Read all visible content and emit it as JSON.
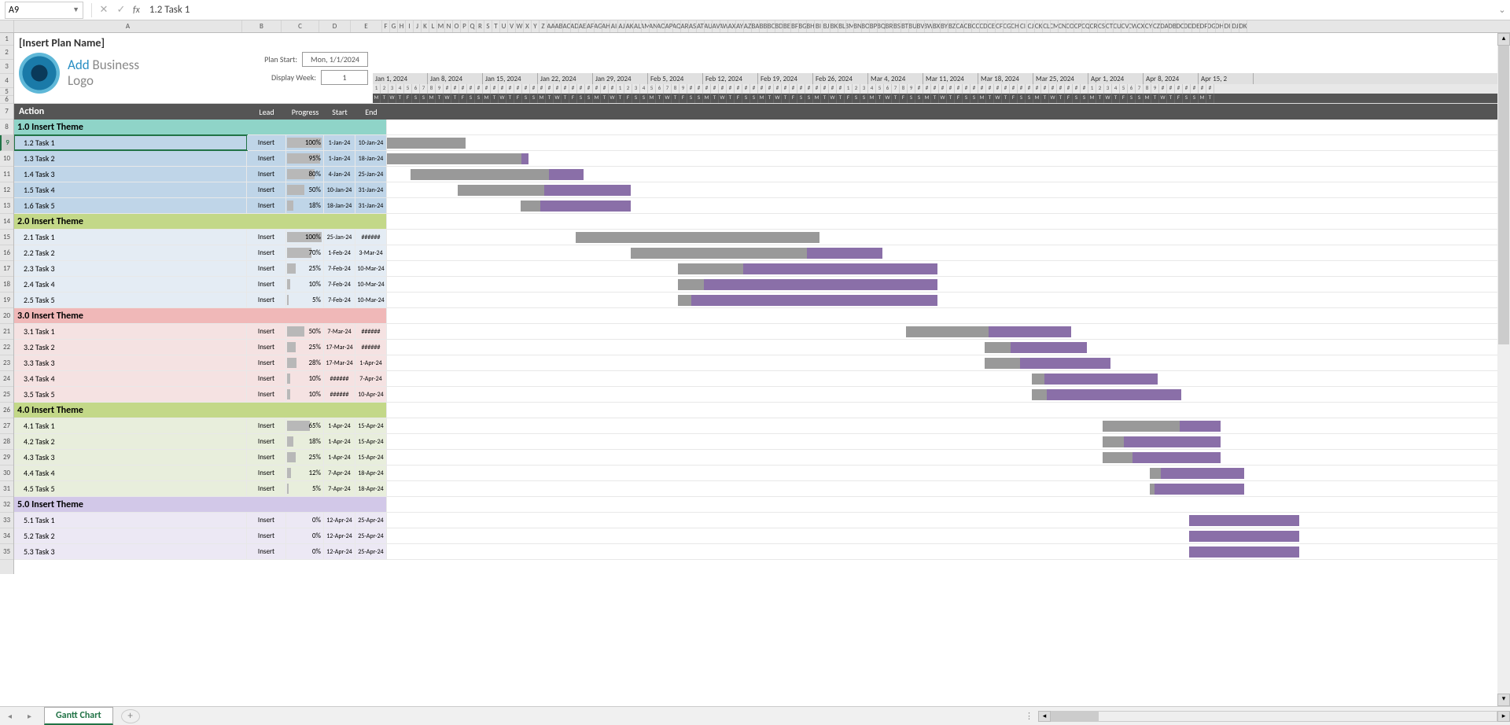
{
  "formula_bar": {
    "cell_ref": "A9",
    "formula": "1.2 Task 1"
  },
  "title": {
    "plan_name": "[Insert Plan Name]",
    "logo_line1_add": "Add",
    "logo_line1_rest": " Business",
    "logo_line2": "Logo",
    "plan_start_label": "Plan Start:",
    "plan_start_value": "Mon, 1/1/2024",
    "display_week_label": "Display Week:",
    "display_week_value": "1"
  },
  "headers": {
    "action": "Action",
    "lead": "Lead",
    "progress": "Progress",
    "start": "Start",
    "end": "End"
  },
  "col_letters": [
    "A",
    "B",
    "C",
    "D",
    "E",
    "F",
    "G",
    "H",
    "I",
    "J",
    "K",
    "L",
    "M",
    "N",
    "O",
    "P",
    "Q",
    "R",
    "S",
    "T",
    "U",
    "V",
    "W",
    "X",
    "Y",
    "Z",
    "AA",
    "AB",
    "AC",
    "AD",
    "AE",
    "AF",
    "AG",
    "AH",
    "AI",
    "AJ",
    "AK",
    "AL",
    "AM",
    "AN",
    "AO",
    "AP",
    "AQ",
    "AR",
    "AS",
    "AT",
    "AU",
    "AV",
    "AW",
    "AX",
    "AY",
    "AZ",
    "BA",
    "BB",
    "BC",
    "BD",
    "BE",
    "BF",
    "BG",
    "BH",
    "BI",
    "BJ",
    "BK",
    "BL",
    "BM",
    "BN",
    "BO",
    "BP",
    "BQ",
    "BR",
    "BS",
    "BT",
    "BU",
    "BV",
    "BW",
    "BX",
    "BY",
    "BZ",
    "CA",
    "CB",
    "CC",
    "CD",
    "CE",
    "CF",
    "CG",
    "CH",
    "CI",
    "CJ",
    "CK",
    "CL",
    "CM",
    "CN",
    "CO",
    "CP",
    "CQ",
    "CR",
    "CS",
    "CT",
    "CU",
    "CV",
    "CW",
    "CX",
    "CY",
    "CZ",
    "DA",
    "DB",
    "DC",
    "DD",
    "DE",
    "DF",
    "DG",
    "DH",
    "DI",
    "DJ",
    "DK"
  ],
  "col_widths": {
    "A": 290,
    "B": 50,
    "C": 48,
    "D": 40,
    "E": 40,
    "rest": 10
  },
  "row_numbers": [
    "1",
    "2",
    "3",
    "4",
    "5",
    "6",
    "7",
    "8",
    "9",
    "10",
    "11",
    "12",
    "13",
    "14",
    "15",
    "16",
    "17",
    "18",
    "19",
    "20",
    "21",
    "22",
    "23",
    "24",
    "25",
    "26",
    "27",
    "28",
    "29",
    "30",
    "31",
    "32",
    "33",
    "34",
    "35"
  ],
  "selected_row": "9",
  "weeks": [
    "Jan 1, 2024",
    "Jan 8, 2024",
    "Jan 15, 2024",
    "Jan 22, 2024",
    "Jan 29, 2024",
    "Feb 5, 2024",
    "Feb 12, 2024",
    "Feb 19, 2024",
    "Feb 26, 2024",
    "Mar 4, 2024",
    "Mar 11, 2024",
    "Mar 18, 2024",
    "Mar 25, 2024",
    "Apr 1, 2024",
    "Apr 8, 2024",
    "Apr 15, 2"
  ],
  "day_nums": [
    "1",
    "2",
    "3",
    "4",
    "5",
    "6",
    "7",
    "8",
    "9",
    "#",
    "#",
    "#",
    "#",
    "#",
    "#",
    "#",
    "#",
    "#",
    "#",
    "#",
    "#",
    "#",
    "#",
    "#",
    "#",
    "#",
    "#",
    "#",
    "#",
    "#",
    "#",
    "1",
    "2",
    "3",
    "4",
    "5",
    "6",
    "7",
    "8",
    "9",
    "#",
    "#",
    "#",
    "#",
    "#",
    "#",
    "#",
    "#",
    "#",
    "#",
    "#",
    "#",
    "#",
    "#",
    "#",
    "#",
    "#",
    "#",
    "#",
    "#",
    "1",
    "2",
    "3",
    "4",
    "5",
    "6",
    "7",
    "8",
    "9",
    "#",
    "#",
    "#",
    "#",
    "#",
    "#",
    "#",
    "#",
    "#",
    "#",
    "#",
    "#",
    "#",
    "#",
    "#",
    "#",
    "#",
    "#",
    "#",
    "#",
    "#",
    "#",
    "1",
    "2",
    "3",
    "4",
    "5",
    "6",
    "7",
    "8",
    "9",
    "#",
    "#",
    "#",
    "#",
    "#",
    "#",
    "#"
  ],
  "day_letters": [
    "M",
    "T",
    "W",
    "T",
    "F",
    "S",
    "S"
  ],
  "day_width": 10,
  "themes": [
    {
      "label": "1.0 Insert Theme",
      "bg": "#8fd4c8",
      "row_bg": "#bfd5e8",
      "tasks": [
        {
          "name": "1.2 Task 1",
          "lead": "Insert",
          "prog": 100,
          "start": "1-Jan-24",
          "end": "10-Jan-24",
          "bar_start": 0,
          "bar_len": 10,
          "selected": true
        },
        {
          "name": "1.3 Task 2",
          "lead": "Insert",
          "prog": 95,
          "start": "1-Jan-24",
          "end": "18-Jan-24",
          "bar_start": 0,
          "bar_len": 18
        },
        {
          "name": "1.4 Task 3",
          "lead": "Insert",
          "prog": 80,
          "start": "4-Jan-24",
          "end": "25-Jan-24",
          "bar_start": 3,
          "bar_len": 22
        },
        {
          "name": "1.5 Task 4",
          "lead": "Insert",
          "prog": 50,
          "start": "10-Jan-24",
          "end": "31-Jan-24",
          "bar_start": 9,
          "bar_len": 22
        },
        {
          "name": "1.6 Task 5",
          "lead": "Insert",
          "prog": 18,
          "start": "18-Jan-24",
          "end": "31-Jan-24",
          "bar_start": 17,
          "bar_len": 14
        }
      ]
    },
    {
      "label": "2.0 Insert Theme",
      "bg": "#c3d888",
      "row_bg": "#e4ecf4",
      "tasks": [
        {
          "name": "2.1 Task 1",
          "lead": "Insert",
          "prog": 100,
          "start": "25-Jan-24",
          "end": "######",
          "bar_start": 24,
          "bar_len": 31
        },
        {
          "name": "2.2 Task 2",
          "lead": "Insert",
          "prog": 70,
          "start": "1-Feb-24",
          "end": "3-Mar-24",
          "bar_start": 31,
          "bar_len": 32
        },
        {
          "name": "2.3 Task 3",
          "lead": "Insert",
          "prog": 25,
          "start": "7-Feb-24",
          "end": "10-Mar-24",
          "bar_start": 37,
          "bar_len": 33
        },
        {
          "name": "2.4 Task 4",
          "lead": "Insert",
          "prog": 10,
          "start": "7-Feb-24",
          "end": "10-Mar-24",
          "bar_start": 37,
          "bar_len": 33
        },
        {
          "name": "2.5 Task 5",
          "lead": "Insert",
          "prog": 5,
          "start": "7-Feb-24",
          "end": "10-Mar-24",
          "bar_start": 37,
          "bar_len": 33
        }
      ]
    },
    {
      "label": "3.0 Insert Theme",
      "bg": "#f0b8b8",
      "row_bg": "#f5e2e2",
      "tasks": [
        {
          "name": "3.1 Task 1",
          "lead": "Insert",
          "prog": 50,
          "start": "7-Mar-24",
          "end": "######",
          "bar_start": 66,
          "bar_len": 21
        },
        {
          "name": "3.2 Task 2",
          "lead": "Insert",
          "prog": 25,
          "start": "17-Mar-24",
          "end": "######",
          "bar_start": 76,
          "bar_len": 13
        },
        {
          "name": "3.3 Task 3",
          "lead": "Insert",
          "prog": 28,
          "start": "17-Mar-24",
          "end": "1-Apr-24",
          "bar_start": 76,
          "bar_len": 16
        },
        {
          "name": "3.4 Task 4",
          "lead": "Insert",
          "prog": 10,
          "start": "######",
          "end": "7-Apr-24",
          "bar_start": 82,
          "bar_len": 16
        },
        {
          "name": "3.5 Task 5",
          "lead": "Insert",
          "prog": 10,
          "start": "######",
          "end": "10-Apr-24",
          "bar_start": 82,
          "bar_len": 19
        }
      ]
    },
    {
      "label": "4.0 Insert Theme",
      "bg": "#c3d888",
      "row_bg": "#e8eedc",
      "tasks": [
        {
          "name": "4.1 Task 1",
          "lead": "Insert",
          "prog": 65,
          "start": "1-Apr-24",
          "end": "15-Apr-24",
          "bar_start": 91,
          "bar_len": 15
        },
        {
          "name": "4.2 Task 2",
          "lead": "Insert",
          "prog": 18,
          "start": "1-Apr-24",
          "end": "15-Apr-24",
          "bar_start": 91,
          "bar_len": 15
        },
        {
          "name": "4.3 Task 3",
          "lead": "Insert",
          "prog": 25,
          "start": "1-Apr-24",
          "end": "15-Apr-24",
          "bar_start": 91,
          "bar_len": 15
        },
        {
          "name": "4.4 Task 4",
          "lead": "Insert",
          "prog": 12,
          "start": "7-Apr-24",
          "end": "18-Apr-24",
          "bar_start": 97,
          "bar_len": 12
        },
        {
          "name": "4.5 Task 5",
          "lead": "Insert",
          "prog": 5,
          "start": "7-Apr-24",
          "end": "18-Apr-24",
          "bar_start": 97,
          "bar_len": 12
        }
      ]
    },
    {
      "label": "5.0 Insert Theme",
      "bg": "#d2c8e8",
      "row_bg": "#ece8f4",
      "tasks": [
        {
          "name": "5.1 Task 1",
          "lead": "Insert",
          "prog": 0,
          "start": "12-Apr-24",
          "end": "25-Apr-24",
          "bar_start": 102,
          "bar_len": 14
        },
        {
          "name": "5.2 Task 2",
          "lead": "Insert",
          "prog": 0,
          "start": "12-Apr-24",
          "end": "25-Apr-24",
          "bar_start": 102,
          "bar_len": 14
        },
        {
          "name": "5.3 Task 3",
          "lead": "Insert",
          "prog": 0,
          "start": "12-Apr-24",
          "end": "25-Apr-24",
          "bar_start": 102,
          "bar_len": 14
        }
      ]
    }
  ],
  "sheet_tab": "Gantt Chart",
  "colors": {
    "bar_remaining": "#999999",
    "bar_progress": "#8a6fa8",
    "action_hdr_bg": "#555555"
  }
}
